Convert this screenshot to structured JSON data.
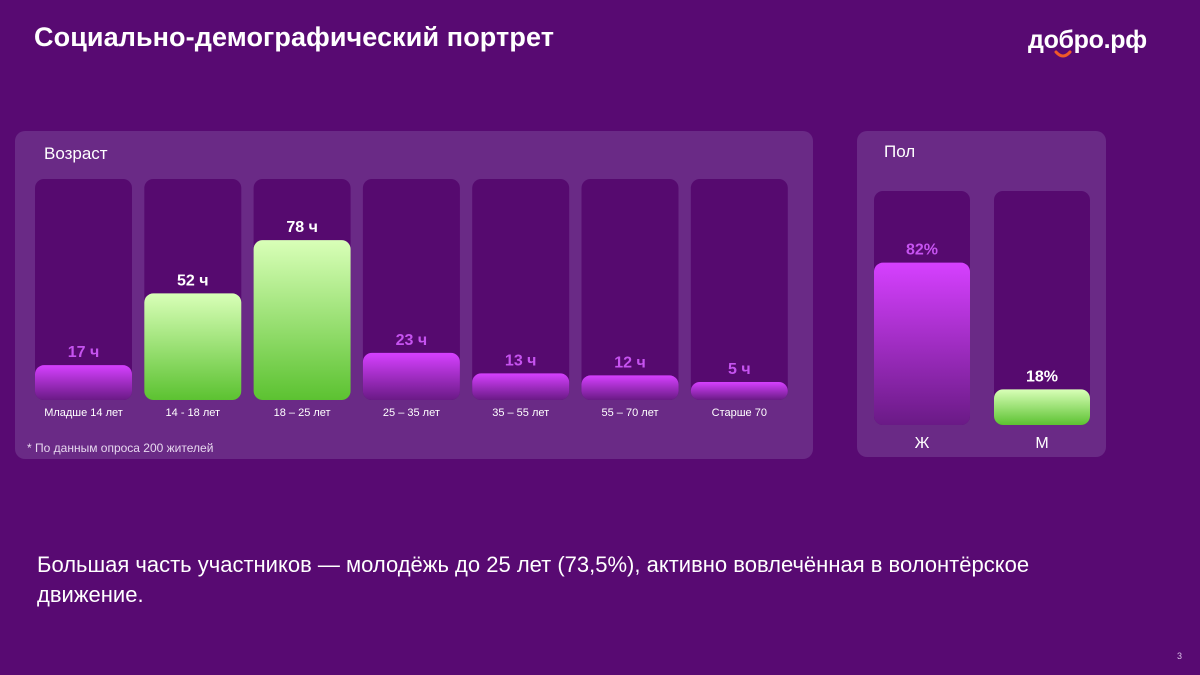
{
  "title": "Социально-демографический портрет",
  "logo": "добро.рф",
  "colors": {
    "background": "#580a72",
    "panel": "#6a2a86",
    "track": "#560a6f",
    "purple_top": "#d640ff",
    "purple_bottom": "#6a1a86",
    "green_top": "#d9ffb8",
    "green_bottom": "#5cc231",
    "logo_accent": "#f05a28"
  },
  "age": {
    "title": "Возраст",
    "footnote": "* По данным опроса 200 жителей"
  },
  "gender": {
    "title": "Пол"
  },
  "summary": "Большая часть участников — молодёжь до 25 лет (73,5%), активно вовлечённая в волонтёрское движение.",
  "page_number": "3",
  "chart_data": [
    {
      "type": "bar",
      "title": "Возраст",
      "categories": [
        "Младше  14 лет",
        "14 - 18 лет",
        "18 – 25 лет",
        "25 – 35 лет",
        "35 – 55 лет",
        "55 – 70 лет",
        "Старше 70"
      ],
      "values": [
        17,
        52,
        78,
        23,
        13,
        12,
        5
      ],
      "value_labels": [
        "17 ч",
        "52 ч",
        "78 ч",
        "23 ч",
        "13 ч",
        "12 ч",
        "5 ч"
      ],
      "highlight": [
        false,
        true,
        true,
        false,
        false,
        false,
        false
      ],
      "ylim": [
        0,
        100
      ],
      "grid": false
    },
    {
      "type": "bar",
      "title": "Пол",
      "categories": [
        "Ж",
        "М"
      ],
      "values": [
        82,
        18
      ],
      "value_labels": [
        "82%",
        "18%"
      ],
      "highlight": [
        false,
        true
      ],
      "ylim": [
        0,
        100
      ],
      "grid": false
    }
  ]
}
